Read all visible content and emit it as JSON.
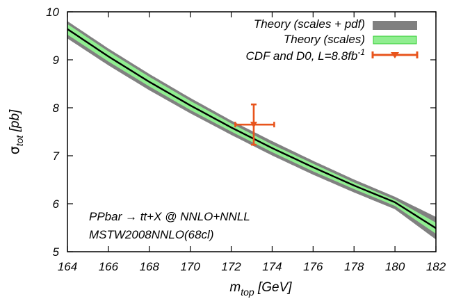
{
  "chart_data": {
    "type": "line",
    "x_axis": {
      "label_main": "m",
      "label_sub": "top",
      "label_unit": " [GeV]",
      "range": [
        164,
        182
      ],
      "ticks": [
        164,
        166,
        168,
        170,
        172,
        174,
        176,
        178,
        180,
        182
      ]
    },
    "y_axis": {
      "label_main": "σ",
      "label_sub": "tot",
      "label_unit": " [pb]",
      "range": [
        5,
        10
      ],
      "ticks": [
        5,
        6,
        7,
        8,
        9,
        10
      ]
    },
    "series": [
      {
        "name": "Theory (scales + pdf)",
        "kind": "band",
        "color": "#808080",
        "x": [
          164,
          166,
          168,
          170,
          172,
          174,
          176,
          178,
          180,
          182
        ],
        "low": [
          9.45,
          8.89,
          8.37,
          7.89,
          7.44,
          7.01,
          6.61,
          6.24,
          5.89,
          5.26
        ],
        "high": [
          9.8,
          9.23,
          8.7,
          8.2,
          7.73,
          7.3,
          6.89,
          6.5,
          6.14,
          5.72
        ]
      },
      {
        "name": "Theory (scales)",
        "kind": "band",
        "color": "#90ee90",
        "x": [
          164,
          166,
          168,
          170,
          172,
          174,
          176,
          178,
          180,
          182
        ],
        "low": [
          9.53,
          8.97,
          8.45,
          7.96,
          7.51,
          7.08,
          6.68,
          6.31,
          5.96,
          5.38
        ],
        "high": [
          9.74,
          9.17,
          8.64,
          8.14,
          7.67,
          7.23,
          6.83,
          6.44,
          6.08,
          5.6
        ]
      },
      {
        "name": "",
        "kind": "line",
        "color": "#000000",
        "x": [
          164,
          166,
          168,
          170,
          172,
          174,
          176,
          178,
          180,
          182
        ],
        "y": [
          9.64,
          9.07,
          8.54,
          8.05,
          7.59,
          7.16,
          6.76,
          6.38,
          6.03,
          5.49
        ]
      },
      {
        "name": "CDF and D0, L=8.8fb",
        "name_sup": "-1",
        "kind": "point",
        "color": "#e8541c",
        "x": 173.1,
        "y": 7.65,
        "x_err": [
          172.2,
          174.1
        ],
        "y_err": [
          7.23,
          8.07
        ]
      }
    ],
    "annotations": [
      "PPbar → tt+X @ NNLO+NNLL",
      "MSTW2008NNLO(68cl)"
    ],
    "legend_position": "top-right",
    "grid": false
  }
}
